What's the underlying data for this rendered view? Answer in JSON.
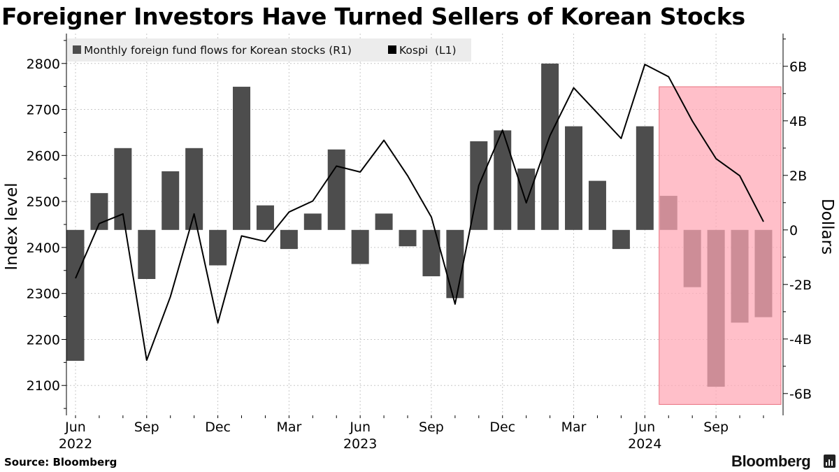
{
  "title": "Foreigner Investors Have Turned Sellers of Korean Stocks",
  "source": "Source: Bloomberg",
  "brand": "Bloomberg",
  "colors": {
    "bars": "#4d4d4d",
    "line": "#000000",
    "highlight": "#ffa6b4",
    "highlight_border": "#e8707e",
    "legend_bg": "#ececec",
    "grid": "#c8c8c8"
  },
  "chart_data": {
    "type": "bar+line",
    "title": "Foreigner Investors Have Turned Sellers of Korean Stocks",
    "legend": [
      {
        "label": "Monthly foreign fund flows for Korean stocks (R1)",
        "swatch": "#4d4d4d"
      },
      {
        "label": "Kospi  (L1)",
        "swatch": "#000000"
      }
    ],
    "left_axis": {
      "label": "Index level",
      "range": [
        2035,
        2865
      ],
      "ticks": [
        "2100",
        "2200",
        "2300",
        "2400",
        "2500",
        "2600",
        "2700",
        "2800"
      ]
    },
    "right_axis": {
      "label": "Dollars",
      "range": [
        -6.8,
        7.2
      ],
      "ticks": [
        "-6B",
        "-4B",
        "-2B",
        "0",
        "2B",
        "4B",
        "6B"
      ]
    },
    "x_labels": [
      {
        "month": "Jun",
        "year": "2022"
      },
      {
        "month": "Sep",
        "year": ""
      },
      {
        "month": "Dec",
        "year": ""
      },
      {
        "month": "Mar",
        "year": ""
      },
      {
        "month": "Jun",
        "year": "2023"
      },
      {
        "month": "Sep",
        "year": ""
      },
      {
        "month": "Dec",
        "year": ""
      },
      {
        "month": "Mar",
        "year": ""
      },
      {
        "month": "Jun",
        "year": "2024"
      },
      {
        "month": "Sep",
        "year": ""
      }
    ],
    "months": [
      "Jun 2022",
      "Jul 2022",
      "Aug 2022",
      "Sep 2022",
      "Oct 2022",
      "Nov 2022",
      "Dec 2022",
      "Jan 2023",
      "Feb 2023",
      "Mar 2023",
      "Apr 2023",
      "May 2023",
      "Jun 2023",
      "Jul 2023",
      "Aug 2023",
      "Sep 2023",
      "Oct 2023",
      "Nov 2023",
      "Dec 2023",
      "Jan 2024",
      "Feb 2024",
      "Mar 2024",
      "Apr 2024",
      "May 2024",
      "Jun 2024",
      "Jul 2024",
      "Aug 2024",
      "Sep 2024",
      "Oct 2024",
      "Nov 2024"
    ],
    "fund_flows_billion_usd": [
      -4.8,
      1.35,
      3.0,
      -1.8,
      2.15,
      3.0,
      -1.3,
      5.25,
      0.9,
      -0.7,
      0.6,
      2.95,
      -1.25,
      0.6,
      -0.6,
      -1.7,
      -2.5,
      3.25,
      3.65,
      2.25,
      6.1,
      3.8,
      1.8,
      -0.7,
      3.8,
      1.25,
      -2.1,
      -5.75,
      -3.4,
      -3.2
    ],
    "kospi": [
      2333,
      2452,
      2473,
      2155,
      2293,
      2473,
      2236,
      2425,
      2413,
      2477,
      2501,
      2577,
      2564,
      2633,
      2556,
      2466,
      2277,
      2535,
      2655,
      2497,
      2643,
      2747,
      2692,
      2637,
      2798,
      2771,
      2675,
      2593,
      2556,
      2456
    ],
    "highlight": {
      "from": "Jul 2024",
      "to": "Nov 2024"
    }
  }
}
